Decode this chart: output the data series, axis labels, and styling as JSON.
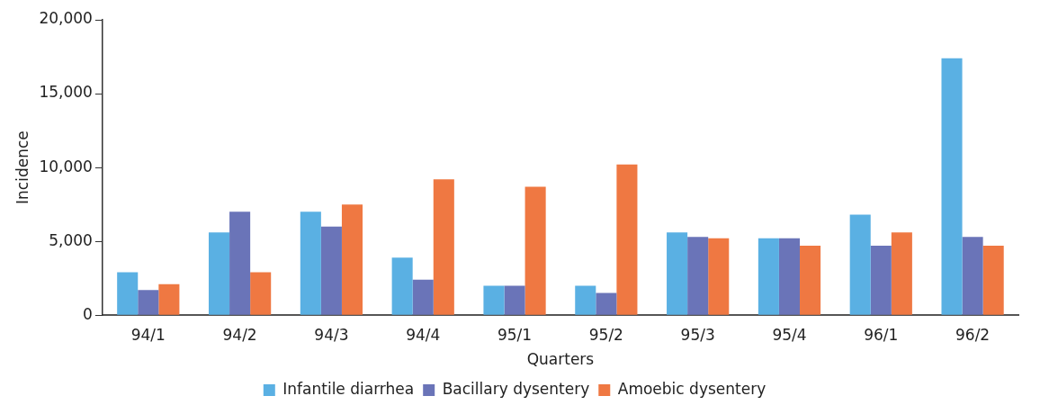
{
  "chart_data": {
    "type": "bar",
    "xlabel": "Quarters",
    "ylabel": "Incidence",
    "categories": [
      "94/1",
      "94/2",
      "94/3",
      "94/4",
      "95/1",
      "95/2",
      "95/3",
      "95/4",
      "96/1",
      "96/2"
    ],
    "series": [
      {
        "name": "Infantile diarrhea",
        "color": "#5ab0e3",
        "values": [
          2900,
          5600,
          7000,
          3900,
          2000,
          2000,
          5600,
          5200,
          6800,
          17400
        ]
      },
      {
        "name": "Bacillary dysentery",
        "color": "#6a74b8",
        "values": [
          1700,
          7000,
          6000,
          2400,
          2000,
          1500,
          5300,
          5200,
          4700,
          5300
        ]
      },
      {
        "name": "Amoebic dysentery",
        "color": "#ef7842",
        "values": [
          2100,
          2900,
          7500,
          9200,
          8700,
          10200,
          5200,
          4700,
          5600,
          4700
        ]
      }
    ],
    "ylim": [
      0,
      20000
    ],
    "yticks": [
      {
        "value": 0,
        "label": "0"
      },
      {
        "value": 5000,
        "label": "5,000"
      },
      {
        "value": 10000,
        "label": "10,000"
      },
      {
        "value": 15000,
        "label": "15,000"
      },
      {
        "value": 20000,
        "label": "20,000"
      }
    ],
    "grid": false,
    "legend": "bottom"
  }
}
